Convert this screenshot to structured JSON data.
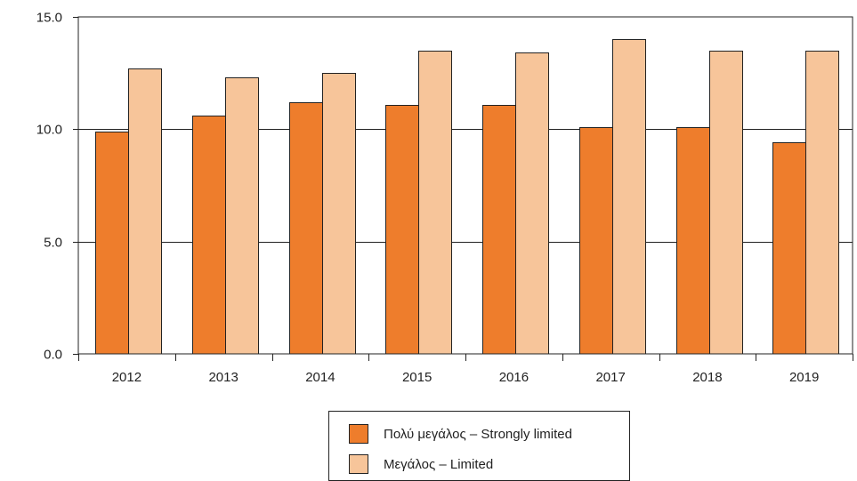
{
  "chart_data": {
    "type": "bar",
    "categories": [
      "2012",
      "2013",
      "2014",
      "2015",
      "2016",
      "2017",
      "2018",
      "2019"
    ],
    "series": [
      {
        "name": "Πολύ μεγάλος – Strongly limited",
        "color": "#ee7d2c",
        "values": [
          9.9,
          10.6,
          11.2,
          11.1,
          11.1,
          10.1,
          10.1,
          9.4
        ]
      },
      {
        "name": "Μεγάλος – Limited",
        "color": "#f7c59a",
        "values": [
          12.7,
          12.3,
          12.5,
          13.5,
          13.4,
          14.0,
          13.5,
          13.5
        ]
      }
    ],
    "ylim": [
      0,
      15
    ],
    "yticks": [
      "0.0",
      "5.0",
      "10.0",
      "15.0"
    ],
    "ytick_values": [
      0,
      5,
      10,
      15
    ],
    "grid": true,
    "legend_position": "bottom-center",
    "title": "",
    "xlabel": "",
    "ylabel": ""
  }
}
